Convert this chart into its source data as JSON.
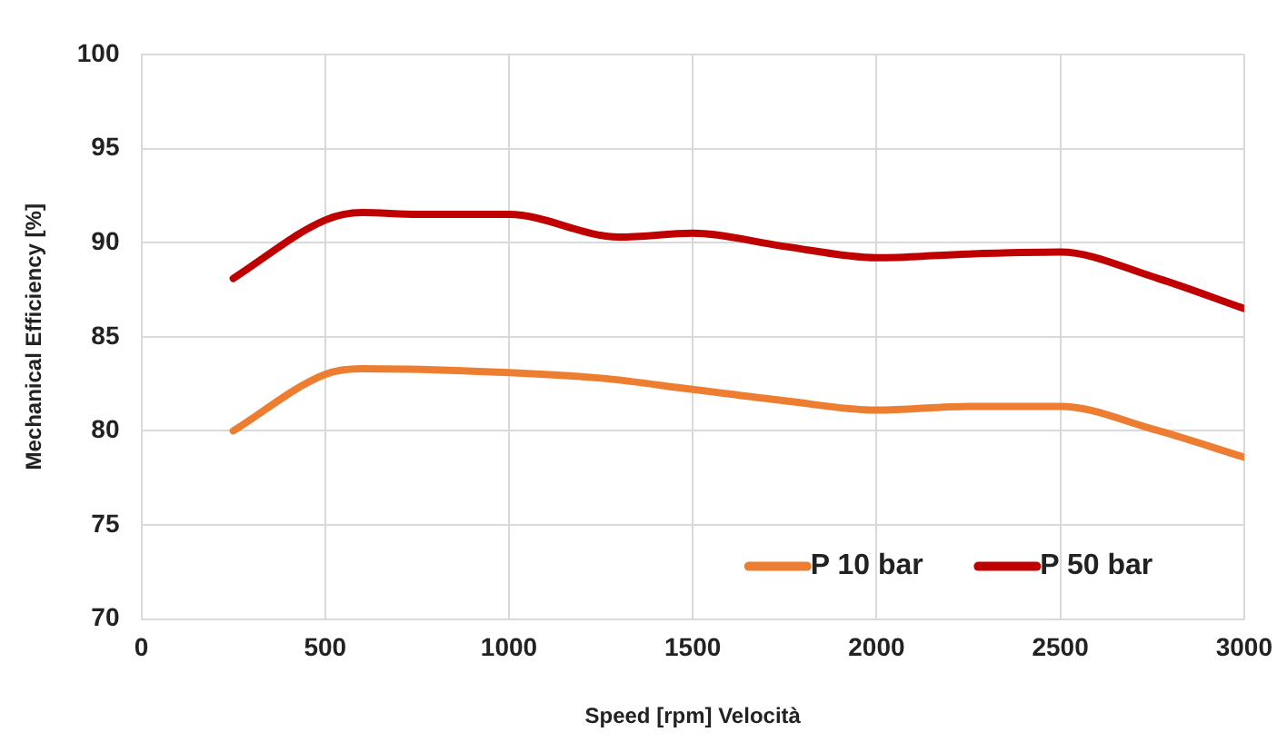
{
  "chart_data": {
    "type": "line",
    "xlabel": "Speed [rpm] Velocità",
    "ylabel": "Mechanical Efficiency [%]",
    "xlim": [
      0,
      3000
    ],
    "xticks": [
      0,
      500,
      1000,
      1500,
      2000,
      2500,
      3000
    ],
    "ylim": [
      70,
      100
    ],
    "yticks": [
      70,
      75,
      80,
      85,
      90,
      95,
      100
    ],
    "grid": true,
    "legend": "bottom right",
    "marker": "none",
    "line_style": "solid",
    "series": [
      {
        "name": "P 10 bar",
        "color": "#ed7d31",
        "x": [
          250,
          500,
          600,
          1000,
          1250,
          1500,
          1750,
          2000,
          2250,
          2500,
          2750,
          3000
        ],
        "values": [
          80.0,
          83.0,
          83.3,
          83.1,
          82.8,
          82.2,
          81.6,
          81.1,
          81.3,
          81.3,
          80.1,
          78.6
        ]
      },
      {
        "name": "P 50 bar",
        "color": "#c00000",
        "x": [
          250,
          500,
          600,
          750,
          1000,
          1300,
          1500,
          1750,
          2000,
          2250,
          2500,
          2750,
          3000
        ],
        "values": [
          88.1,
          91.2,
          91.6,
          91.5,
          91.5,
          90.3,
          90.5,
          89.8,
          89.2,
          89.4,
          89.5,
          88.2,
          86.5
        ]
      }
    ]
  }
}
